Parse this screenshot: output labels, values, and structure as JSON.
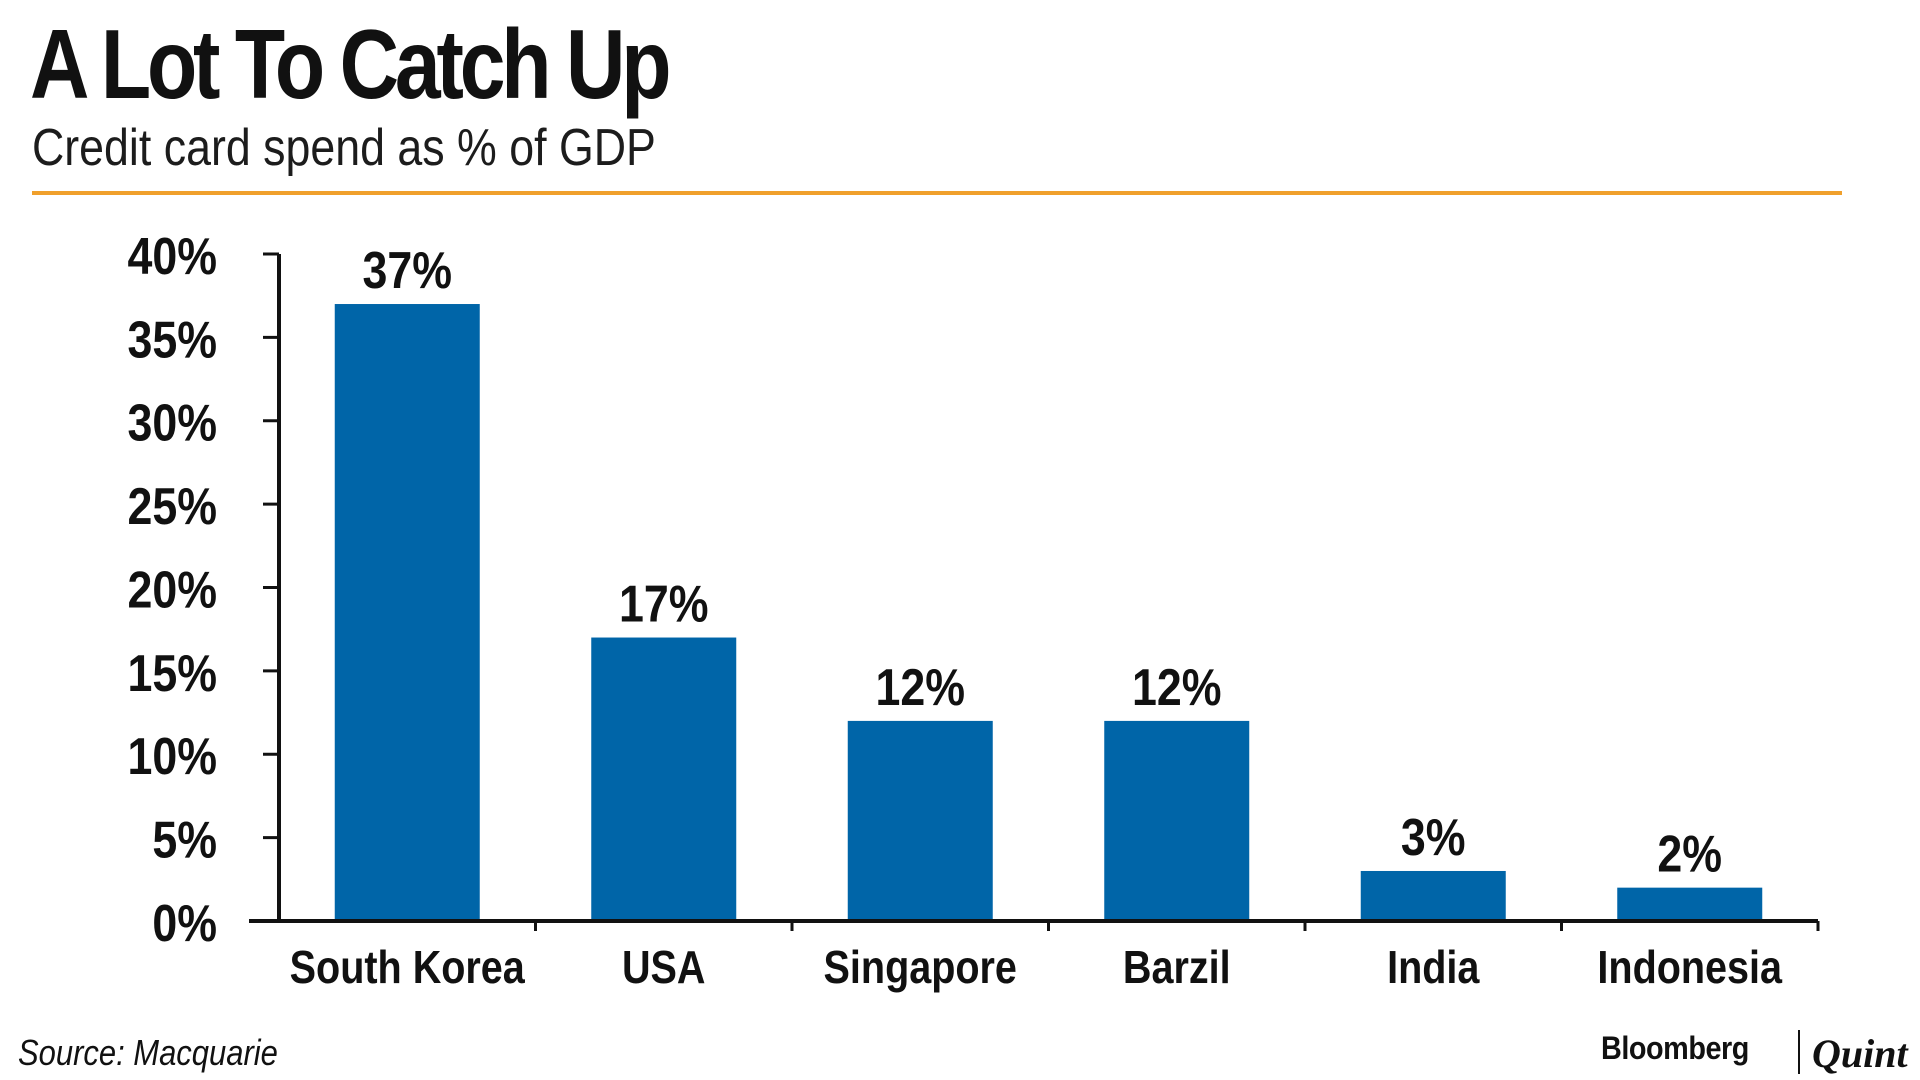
{
  "header": {
    "title": "A Lot To Catch Up",
    "subtitle": "Credit card spend as % of GDP"
  },
  "footer": {
    "source": "Source: Macquarie",
    "logo_primary": "Bloomberg",
    "logo_secondary": "Quint"
  },
  "colors": {
    "bar": "#0065A8",
    "rule": "#F0A02C",
    "text": "#111111",
    "axis": "#111111"
  },
  "chart_data": {
    "type": "bar",
    "title": "A Lot To Catch Up",
    "subtitle": "Credit card spend as % of GDP",
    "xlabel": "",
    "ylabel": "",
    "categories": [
      "South Korea",
      "USA",
      "Singapore",
      "Barzil",
      "India",
      "Indonesia"
    ],
    "values": [
      37,
      17,
      12,
      12,
      3,
      2
    ],
    "value_labels": [
      "37%",
      "17%",
      "12%",
      "12%",
      "3%",
      "2%"
    ],
    "ylim": [
      0,
      40
    ],
    "yticks": [
      0,
      5,
      10,
      15,
      20,
      25,
      30,
      35,
      40
    ],
    "ytick_labels": [
      "0%",
      "5%",
      "10%",
      "15%",
      "20%",
      "25%",
      "30%",
      "35%",
      "40%"
    ],
    "grid": false,
    "legend": "none"
  }
}
